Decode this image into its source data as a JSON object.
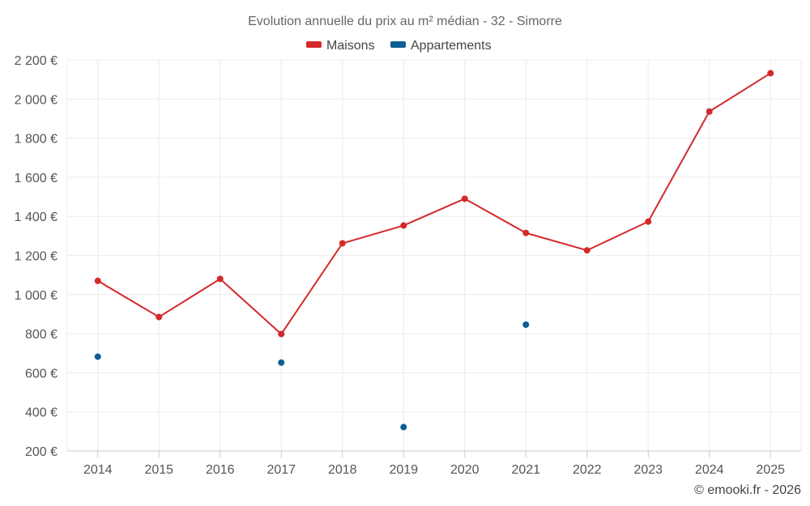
{
  "chart_data": {
    "type": "line",
    "title": "Evolution annuelle du prix au m² médian - 32 - Simorre",
    "categories": [
      "2014",
      "2015",
      "2016",
      "2017",
      "2018",
      "2019",
      "2020",
      "2021",
      "2022",
      "2023",
      "2024",
      "2025"
    ],
    "ylim": [
      200,
      2200
    ],
    "yticks": [
      200,
      400,
      600,
      800,
      1000,
      1200,
      1400,
      1600,
      1800,
      2000,
      2200
    ],
    "ytick_labels": [
      "200 €",
      "400 €",
      "600 €",
      "800 €",
      "1 000 €",
      "1 200 €",
      "1 400 €",
      "1 600 €",
      "1 800 €",
      "2 000 €",
      "2 200 €"
    ],
    "grid": true,
    "legend_position": "top-center",
    "series": [
      {
        "name": "Maisons",
        "color": "#d3292b",
        "line": true,
        "values": [
          1070,
          885,
          1080,
          798,
          1262,
          1353,
          1490,
          1315,
          1226,
          1373,
          1936,
          2132
        ]
      },
      {
        "name": "Appartements",
        "color": "#0c5f96",
        "line": false,
        "values": [
          682,
          null,
          null,
          652,
          null,
          322,
          null,
          846,
          null,
          null,
          null,
          null
        ]
      }
    ]
  },
  "credit": "© emooki.fr - 2026"
}
